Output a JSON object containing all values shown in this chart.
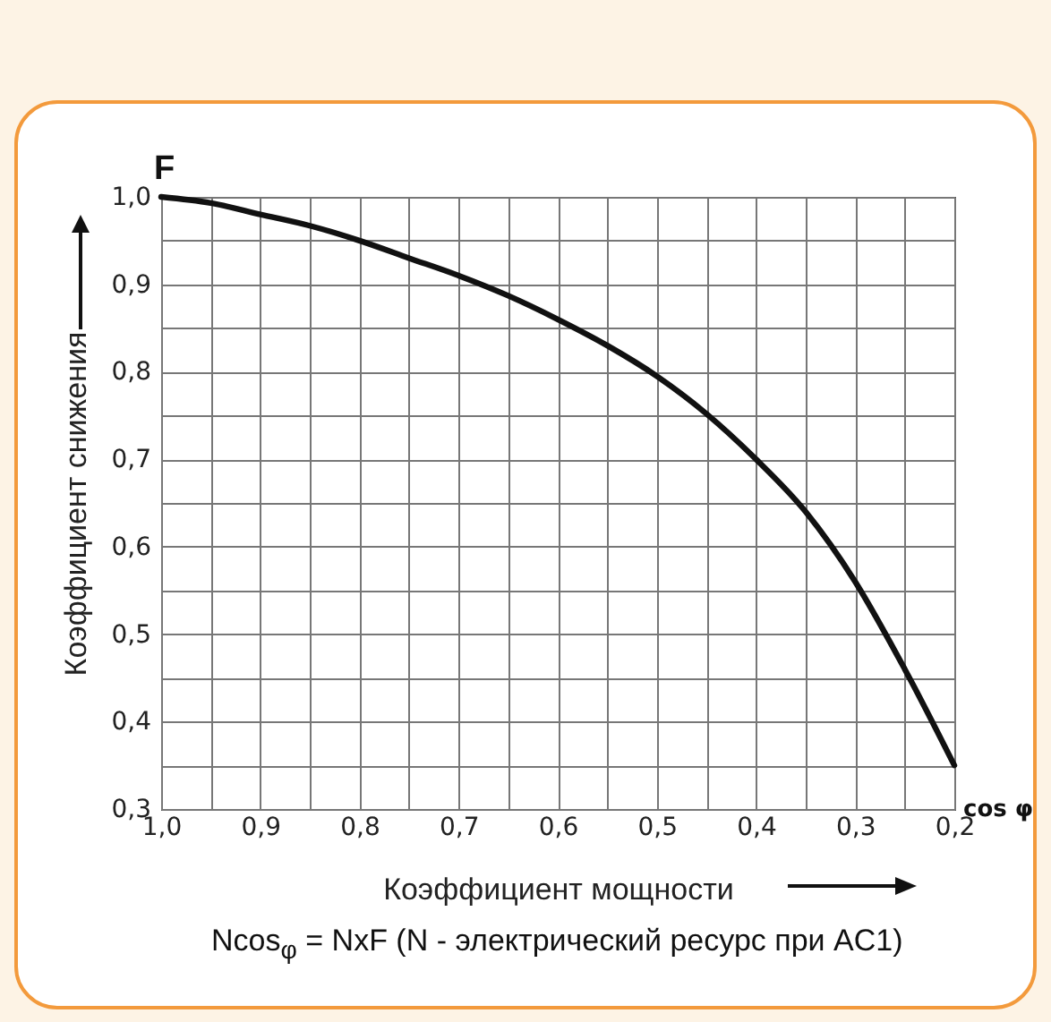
{
  "chart_data": {
    "type": "line",
    "xlabel": "Коэффициент мощности",
    "ylabel": "Коэффициент снижения",
    "annotations": [
      "F",
      "cos φ",
      "Ncos$_{φ}$ = NxF   (N - электрический ресурс при AC1)"
    ],
    "x": [
      1.0,
      0.95,
      0.9,
      0.85,
      0.8,
      0.75,
      0.7,
      0.65,
      0.6,
      0.55,
      0.5,
      0.45,
      0.4,
      0.35,
      0.3,
      0.25,
      0.2
    ],
    "series": [
      {
        "color": "#111111",
        "values": [
          1.0,
          0.993,
          0.98,
          0.967,
          0.95,
          0.93,
          0.91,
          0.887,
          0.86,
          0.83,
          0.795,
          0.752,
          0.7,
          0.64,
          0.56,
          0.46,
          0.35
        ]
      }
    ],
    "xlim": [
      1.0,
      0.2
    ],
    "ylim": [
      0.3,
      1.0
    ],
    "xticks": [
      {
        "value": 1.0,
        "label": "1,0"
      },
      {
        "value": 0.95,
        "label": null
      },
      {
        "value": 0.9,
        "label": "0,9"
      },
      {
        "value": 0.85,
        "label": null
      },
      {
        "value": 0.8,
        "label": "0,8"
      },
      {
        "value": 0.75,
        "label": null
      },
      {
        "value": 0.7,
        "label": "0,7"
      },
      {
        "value": 0.65,
        "label": null
      },
      {
        "value": 0.6,
        "label": "0,6"
      },
      {
        "value": 0.55,
        "label": null
      },
      {
        "value": 0.5,
        "label": "0,5"
      },
      {
        "value": 0.45,
        "label": null
      },
      {
        "value": 0.4,
        "label": "0,4"
      },
      {
        "value": 0.35,
        "label": null
      },
      {
        "value": 0.3,
        "label": "0,3"
      },
      {
        "value": 0.25,
        "label": null
      },
      {
        "value": 0.2,
        "label": "0,2"
      }
    ],
    "yticks": [
      {
        "value": 0.3,
        "label": "0,3"
      },
      {
        "value": 0.35,
        "label": null
      },
      {
        "value": 0.4,
        "label": "0,4"
      },
      {
        "value": 0.45,
        "label": null
      },
      {
        "value": 0.5,
        "label": "0,5"
      },
      {
        "value": 0.55,
        "label": null
      },
      {
        "value": 0.6,
        "label": "0,6"
      },
      {
        "value": 0.65,
        "label": null
      },
      {
        "value": 0.7,
        "label": "0,7"
      },
      {
        "value": 0.75,
        "label": null
      },
      {
        "value": 0.8,
        "label": "0,8"
      },
      {
        "value": 0.85,
        "label": null
      },
      {
        "value": 0.9,
        "label": "0,9"
      },
      {
        "value": 0.95,
        "label": null
      },
      {
        "value": 1.0,
        "label": "1,0"
      }
    ],
    "grid": true,
    "line_style": "solid",
    "marker": "none"
  }
}
